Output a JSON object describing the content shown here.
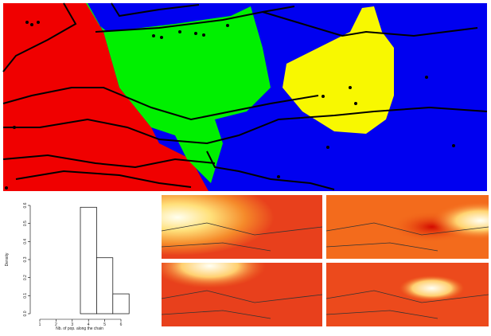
{
  "chart_data": {
    "type": "histogram",
    "x_label": "Nb. of pop. along the chain",
    "y_label": "Density",
    "bins": [
      0.5,
      1.5,
      2.5,
      3.5,
      4.5,
      5.5,
      6.5
    ],
    "values": [
      0,
      0,
      0,
      0.59,
      0.31,
      0.11
    ],
    "color": "#ffffff",
    "xlim": [
      0.5,
      6.5
    ],
    "xticks": [
      1,
      2,
      3,
      4,
      5,
      6
    ],
    "ylim": [
      0,
      0.6
    ],
    "yticks": [
      {
        "value": 0,
        "label": "0.0"
      },
      0.1,
      0.2,
      0.3,
      0.4,
      0.5,
      0.6
    ]
  }
}
